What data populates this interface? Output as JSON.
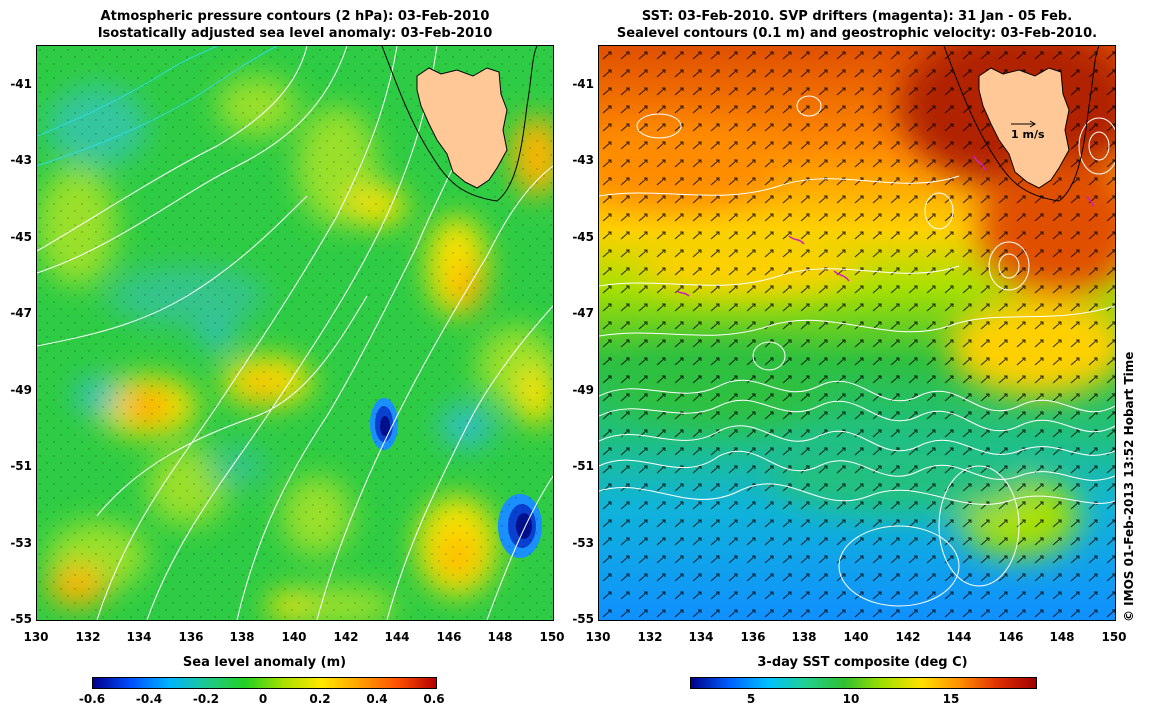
{
  "left": {
    "title_line1": "Atmospheric pressure contours (2 hPa): 03-Feb-2010",
    "title_line2": "Isostatically adjusted sea level anomaly: 03-Feb-2010",
    "colorbar_label": "Sea level anomaly (m)",
    "colorbar_ticks": [
      "-0.6",
      "-0.4",
      "-0.2",
      "0",
      "0.2",
      "0.4",
      "0.6"
    ],
    "colorbar_colors": [
      "#00008b",
      "#0050ff",
      "#00b4ff",
      "#1ec98c",
      "#22d022",
      "#a8e000",
      "#ffe800",
      "#ffa000",
      "#ff5000",
      "#b40000"
    ]
  },
  "right": {
    "title_line1": "SST: 03-Feb-2010. SVP drifters (magenta): 31 Jan - 05 Feb.",
    "title_line2": "Sealevel contours (0.1 m) and geostrophic velocity: 03-Feb-2010.",
    "colorbar_label": "3-day SST composite (deg C)",
    "colorbar_ticks": [
      "5",
      "10",
      "15"
    ],
    "colorbar_colors": [
      "#00008b",
      "#0060ff",
      "#00c0ff",
      "#20d090",
      "#30c030",
      "#a0e000",
      "#ffe000",
      "#ff9000",
      "#e03000",
      "#a00000"
    ],
    "velocity_key": "1 m/s"
  },
  "axes": {
    "x_ticks": [
      "130",
      "132",
      "134",
      "136",
      "138",
      "140",
      "142",
      "144",
      "146",
      "148",
      "150"
    ],
    "y_ticks": [
      "-41",
      "-43",
      "-45",
      "-47",
      "-49",
      "-51",
      "-53",
      "-55"
    ],
    "lon_range": [
      130,
      150
    ],
    "lat_range": [
      -55,
      -40
    ]
  },
  "credit": "© IMOS 01-Feb-2013 13:52 Hobart Time",
  "colors": {
    "land": "#ffc896",
    "contour": "#ffffff",
    "pressure_low_contour": "#30d8e0",
    "drifter": "#d020c0",
    "vector": "#000000"
  }
}
